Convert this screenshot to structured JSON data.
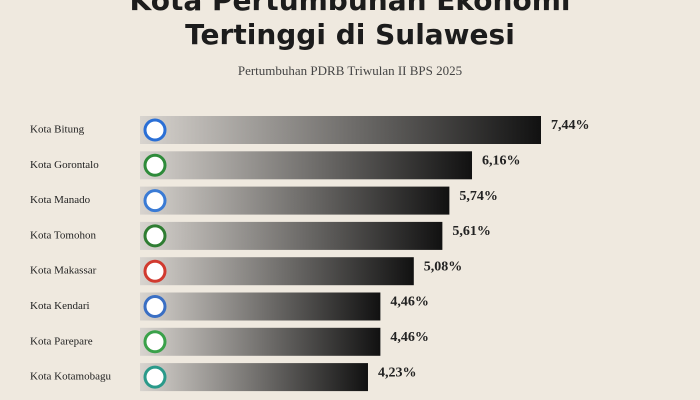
{
  "chart_data": {
    "type": "bar",
    "orientation": "horizontal",
    "title": [
      "Kota Pertumbuhan Ekonomi",
      "Tertinggi di Sulawesi"
    ],
    "subtitle": "Pertumbuhan PDRB Triwulan II BPS 2025",
    "categories": [
      "Kota Bitung",
      "Kota Gorontalo",
      "Kota Manado",
      "Kota Tomohon",
      "Kota Makassar",
      "Kota Kendari",
      "Kota Parepare",
      "Kota Kotamobagu"
    ],
    "values": [
      7.44,
      6.16,
      5.74,
      5.61,
      5.08,
      4.46,
      4.46,
      4.23
    ],
    "value_labels": [
      "7,44%",
      "6,16%",
      "5,74%",
      "5,61%",
      "5,08%",
      "4,46%",
      "4,46%",
      "4,23%"
    ],
    "color": "#111111"
  }
}
